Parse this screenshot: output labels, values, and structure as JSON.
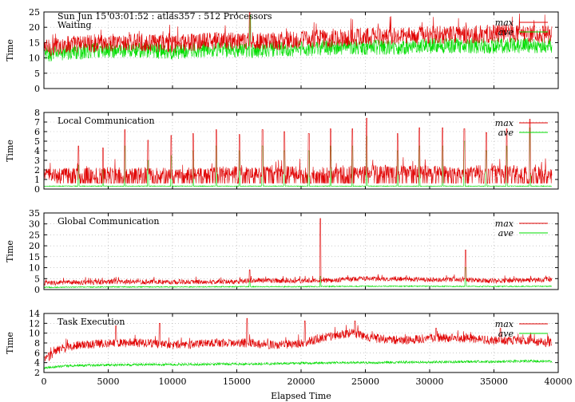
{
  "chart_data": {
    "type": "line",
    "shared_x": {
      "label": "Elapsed Time",
      "range": [
        0,
        40000
      ],
      "ticks": [
        0,
        5000,
        10000,
        15000,
        20000,
        25000,
        30000,
        35000,
        40000
      ]
    },
    "header_text": "Sun Jun 15 03:01:52 : atlas357 : 512 Processors",
    "colors": {
      "max": "#e00000",
      "ave": "#00dd00",
      "grid": "#aaaaaa"
    },
    "panels": [
      {
        "title": "Waiting",
        "ylabel": "Time",
        "ylim": [
          0,
          25
        ],
        "yticks": [
          0,
          5,
          10,
          15,
          20,
          25
        ],
        "series": [
          {
            "name": "max",
            "x": [
              0,
              2000,
              5000,
              8000,
              10000,
              13000,
              16000,
              18000,
              20000,
              23000,
              25000,
              28000,
              30000,
              33000,
              35000,
              37000,
              39500
            ],
            "values": [
              13,
              14.5,
              15,
              15,
              14.5,
              15.5,
              15.5,
              15.5,
              16,
              16.5,
              17,
              17,
              17.5,
              17.5,
              18,
              18,
              17.5
            ]
          },
          {
            "name": "ave",
            "x": [
              0,
              2000,
              5000,
              8000,
              10000,
              13000,
              16000,
              18000,
              20000,
              23000,
              25000,
              28000,
              30000,
              33000,
              35000,
              37000,
              39500
            ],
            "values": [
              11,
              12,
              12.5,
              12.5,
              12,
              13,
              12.5,
              13,
              13,
              13.5,
              13.5,
              13.5,
              14,
              14,
              14,
              14,
              14
            ]
          }
        ]
      },
      {
        "title": "Local Communication",
        "ylabel": "Time",
        "ylim": [
          0,
          8
        ],
        "yticks": [
          0,
          1,
          2,
          3,
          4,
          5,
          6,
          7,
          8
        ],
        "series": [
          {
            "name": "max",
            "x": [
              0,
              5000,
              10000,
              15000,
              20000,
              25000,
              30000,
              35000,
              39500
            ],
            "values": [
              1.5,
              1.6,
              1.6,
              1.7,
              1.7,
              1.8,
              1.8,
              1.8,
              1.7
            ]
          },
          {
            "name": "ave",
            "x": [
              0,
              5000,
              10000,
              15000,
              20000,
              25000,
              30000,
              35000,
              39500
            ],
            "values": [
              0.3,
              0.3,
              0.3,
              0.3,
              0.3,
              0.3,
              0.3,
              0.3,
              0.3
            ]
          }
        ]
      },
      {
        "title": "Global Communication",
        "ylabel": "Time",
        "ylim": [
          0,
          35
        ],
        "yticks": [
          0,
          5,
          10,
          15,
          20,
          25,
          30,
          35
        ],
        "series": [
          {
            "name": "max",
            "x": [
              0,
              5000,
              10000,
              15000,
              16000,
              21500,
              25000,
              30000,
              32800,
              35000,
              39500
            ],
            "values": [
              3,
              3.5,
              3.5,
              3.5,
              4,
              4,
              5,
              4.5,
              4.5,
              4,
              4.5
            ]
          },
          {
            "name": "ave",
            "x": [
              0,
              5000,
              10000,
              15000,
              20000,
              25000,
              30000,
              35000,
              39500
            ],
            "values": [
              1,
              1.2,
              1.2,
              1.3,
              1.3,
              1.5,
              1.5,
              1.4,
              1.5
            ]
          }
        ]
      },
      {
        "title": "Task Execution",
        "ylabel": "Time",
        "ylim": [
          2,
          14
        ],
        "yticks": [
          2,
          4,
          6,
          8,
          10,
          12,
          14
        ],
        "series": [
          {
            "name": "max",
            "x": [
              0,
              1000,
              2500,
              5000,
              8000,
              10000,
              13000,
              16000,
              18000,
              20000,
              22500,
              24000,
              25500,
              28000,
              30000,
              33000,
              35000,
              37000,
              39500
            ],
            "values": [
              4.5,
              6.5,
              7.5,
              8,
              8,
              7.5,
              8,
              8,
              7.5,
              8,
              9.5,
              10,
              9,
              8.5,
              9,
              9,
              8.5,
              8.5,
              8
            ]
          },
          {
            "name": "ave",
            "x": [
              0,
              1000,
              2500,
              5000,
              8000,
              10000,
              13000,
              16000,
              18000,
              20000,
              22500,
              24000,
              25500,
              28000,
              30000,
              33000,
              35000,
              37000,
              39500
            ],
            "values": [
              3,
              3.2,
              3.4,
              3.5,
              3.6,
              3.6,
              3.7,
              3.7,
              3.8,
              3.9,
              4,
              4,
              4,
              4.1,
              4.1,
              4.2,
              4.2,
              4.3,
              4.3
            ]
          }
        ]
      }
    ]
  }
}
